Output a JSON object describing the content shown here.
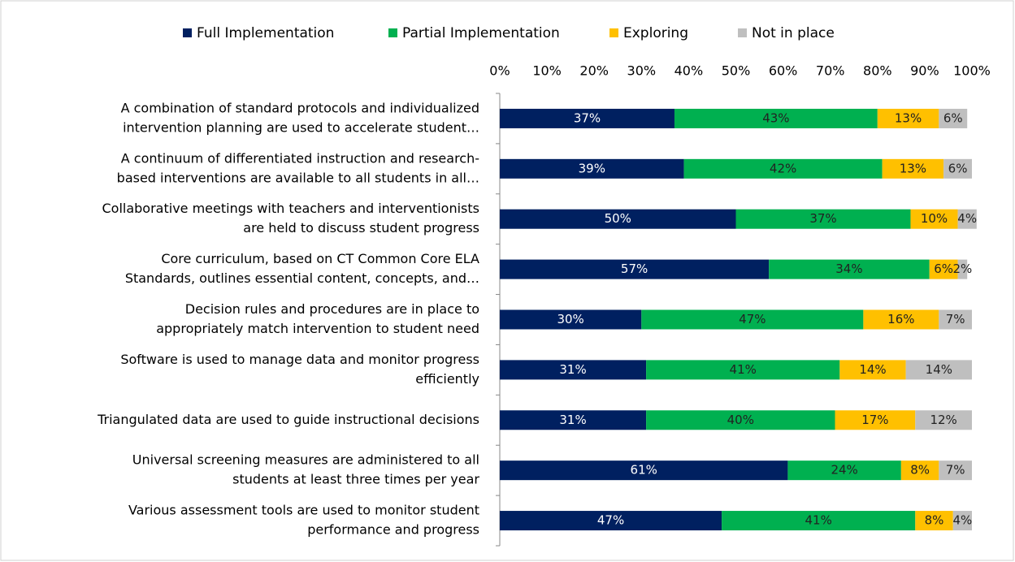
{
  "chart_data": {
    "type": "stacked-bar-horizontal",
    "categories": [
      [
        "A combination of standard protocols and individualized",
        "intervention planning are used  to accelerate student…"
      ],
      [
        "A continuum of differentiated instruction and research-",
        "based  interventions are available to all students in all…"
      ],
      [
        "Collaborative meetings with teachers and interventionists",
        "are held to discuss student progress"
      ],
      [
        "Core curriculum, based on CT Common Core ELA",
        "Standards, outlines essential content, concepts, and…"
      ],
      [
        "Decision rules and procedures are in place to",
        "appropriately match intervention to student need"
      ],
      [
        "Software is used  to manage data and monitor progress",
        "efficiently"
      ],
      [
        "Triangulated data are used to guide instructional decisions"
      ],
      [
        "Universal screening measures are administered to all",
        "students at least three times per year"
      ],
      [
        "Various assessment tools are used to monitor student",
        "performance and progress"
      ]
    ],
    "series": [
      {
        "name": "Full Implementation",
        "color": "#002060",
        "values": [
          37,
          39,
          50,
          57,
          30,
          31,
          31,
          61,
          47
        ],
        "value_labels": [
          "37%",
          "39%",
          "50%",
          "57%",
          "30%",
          "31%",
          "31%",
          "61%",
          "47%"
        ]
      },
      {
        "name": "Partial Implementation",
        "color": "#00b050",
        "values": [
          43,
          42,
          37,
          34,
          47,
          41,
          40,
          24,
          41
        ],
        "value_labels": [
          "43%",
          "42%",
          "37%",
          "34%",
          "47%",
          "41%",
          "40%",
          "24%",
          "41%"
        ]
      },
      {
        "name": "Exploring",
        "color": "#ffc000",
        "values": [
          13,
          13,
          10,
          6,
          16,
          14,
          17,
          8,
          8
        ],
        "value_labels": [
          "13%",
          "13%",
          "10%",
          "6%",
          "16%",
          "14%",
          "17%",
          "8%",
          "8%"
        ]
      },
      {
        "name": "Not in place",
        "color": "#bfbfbf",
        "values": [
          6,
          6,
          4,
          2,
          7,
          14,
          12,
          7,
          4
        ],
        "value_labels": [
          "6%",
          "6%",
          "4%",
          "2%",
          "7%",
          "14%",
          "12%",
          "7%",
          "4%"
        ]
      }
    ],
    "xlim": [
      0,
      100
    ],
    "xticks": [
      {
        "value": 0,
        "label": "0%"
      },
      {
        "value": 10,
        "label": "10%"
      },
      {
        "value": 20,
        "label": "20%"
      },
      {
        "value": 30,
        "label": "30%"
      },
      {
        "value": 40,
        "label": "40%"
      },
      {
        "value": 50,
        "label": "50%"
      },
      {
        "value": 60,
        "label": "60%"
      },
      {
        "value": 70,
        "label": "70%"
      },
      {
        "value": 80,
        "label": "80%"
      },
      {
        "value": 90,
        "label": "90%"
      },
      {
        "value": 100,
        "label": "100%"
      }
    ],
    "legend": "top"
  }
}
